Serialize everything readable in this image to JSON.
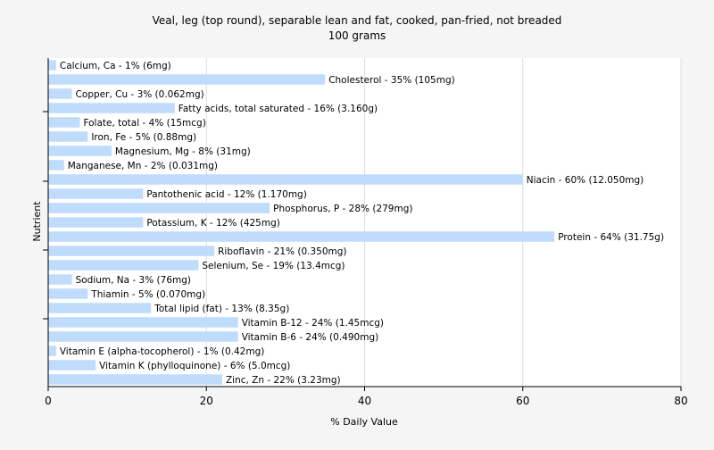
{
  "chart_data": {
    "type": "bar",
    "orientation": "horizontal",
    "title": "Veal, leg (top round), separable lean and fat, cooked, pan-fried, not breaded",
    "subtitle": "100 grams",
    "xlabel": "% Daily Value",
    "ylabel": "Nutrient",
    "xlim": [
      0,
      80
    ],
    "xticks": [
      0,
      20,
      40,
      60,
      80
    ],
    "grid": true,
    "legend": "none",
    "bar_color": "#bfdcfd",
    "categories": [
      "Calcium, Ca",
      "Cholesterol",
      "Copper, Cu",
      "Fatty acids, total saturated",
      "Folate, total",
      "Iron, Fe",
      "Magnesium, Mg",
      "Manganese, Mn",
      "Niacin",
      "Pantothenic acid",
      "Phosphorus, P",
      "Potassium, K",
      "Protein",
      "Riboflavin",
      "Selenium, Se",
      "Sodium, Na",
      "Thiamin",
      "Total lipid (fat)",
      "Vitamin B-12",
      "Vitamin B-6",
      "Vitamin E (alpha-tocopherol)",
      "Vitamin K (phylloquinone)",
      "Zinc, Zn"
    ],
    "values": [
      1,
      35,
      3,
      16,
      4,
      5,
      8,
      2,
      60,
      12,
      28,
      12,
      64,
      21,
      19,
      3,
      5,
      13,
      24,
      24,
      1,
      6,
      22
    ],
    "labels": [
      "Calcium, Ca - 1% (6mg)",
      "Cholesterol - 35% (105mg)",
      "Copper, Cu - 3% (0.062mg)",
      "Fatty acids, total saturated - 16% (3.160g)",
      "Folate, total - 4% (15mcg)",
      "Iron, Fe - 5% (0.88mg)",
      "Magnesium, Mg - 8% (31mg)",
      "Manganese, Mn - 2% (0.031mg)",
      "Niacin - 60% (12.050mg)",
      "Pantothenic acid - 12% (1.170mg)",
      "Phosphorus, P - 28% (279mg)",
      "Potassium, K - 12% (425mg)",
      "Protein - 64% (31.75g)",
      "Riboflavin - 21% (0.350mg)",
      "Selenium, Se - 19% (13.4mcg)",
      "Sodium, Na - 3% (76mg)",
      "Thiamin - 5% (0.070mg)",
      "Total lipid (fat) - 13% (8.35g)",
      "Vitamin B-12 - 24% (1.45mcg)",
      "Vitamin B-6 - 24% (0.490mg)",
      "Vitamin E (alpha-tocopherol) - 1% (0.42mg)",
      "Vitamin K (phylloquinone) - 6% (5.0mcg)",
      "Zinc, Zn - 22% (3.23mg)"
    ]
  }
}
